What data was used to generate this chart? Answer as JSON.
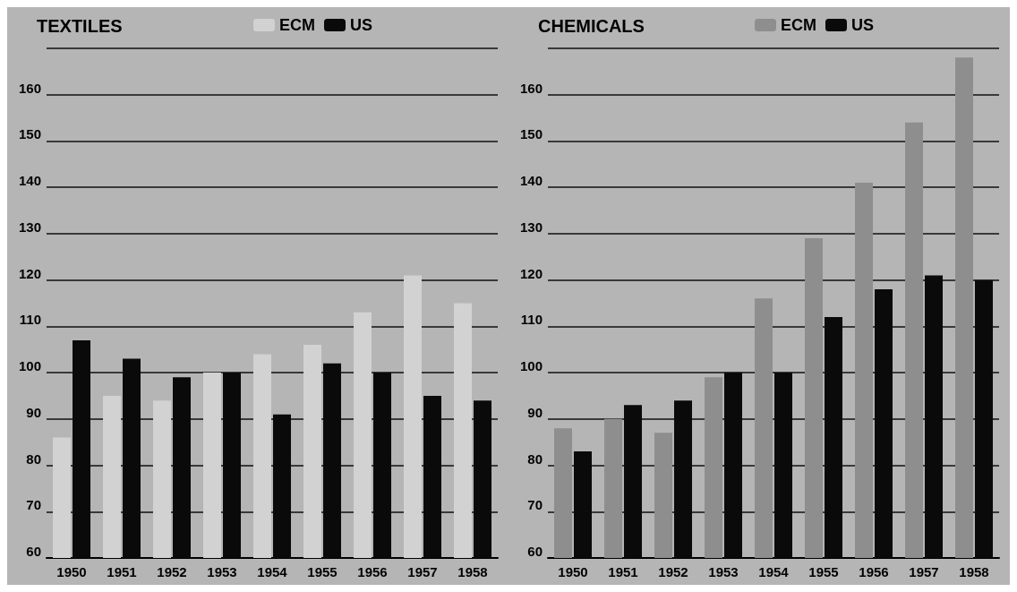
{
  "chart_data": [
    {
      "type": "bar",
      "title": "TEXTILES",
      "categories": [
        "1950",
        "1951",
        "1952",
        "1953",
        "1954",
        "1955",
        "1956",
        "1957",
        "1958"
      ],
      "series": [
        {
          "name": "ECM",
          "color": "#d2d2d2",
          "values": [
            86,
            95,
            94,
            100,
            104,
            106,
            113,
            121,
            115
          ]
        },
        {
          "name": "US",
          "color": "#0a0a0a",
          "values": [
            107,
            103,
            99,
            100,
            91,
            102,
            100,
            95,
            94
          ]
        }
      ],
      "ylim": [
        60,
        170
      ],
      "yticks": [
        60,
        70,
        80,
        90,
        100,
        110,
        120,
        130,
        140,
        150,
        160,
        {
          "value": 170,
          "label": null
        }
      ],
      "grid": "y",
      "legend": "top"
    },
    {
      "type": "bar",
      "title": "CHEMICALS",
      "categories": [
        "1950",
        "1951",
        "1952",
        "1953",
        "1954",
        "1955",
        "1956",
        "1957",
        "1958"
      ],
      "series": [
        {
          "name": "ECM",
          "color": "#8e8e8e",
          "values": [
            88,
            90,
            87,
            99,
            116,
            129,
            141,
            154,
            168
          ]
        },
        {
          "name": "US",
          "color": "#0a0a0a",
          "values": [
            83,
            93,
            94,
            100,
            100,
            112,
            118,
            121,
            120
          ]
        }
      ],
      "ylim": [
        60,
        170
      ],
      "yticks": [
        60,
        70,
        80,
        90,
        100,
        110,
        120,
        130,
        140,
        150,
        160,
        {
          "value": 170,
          "label": null
        }
      ],
      "grid": "y",
      "legend": "top"
    }
  ]
}
